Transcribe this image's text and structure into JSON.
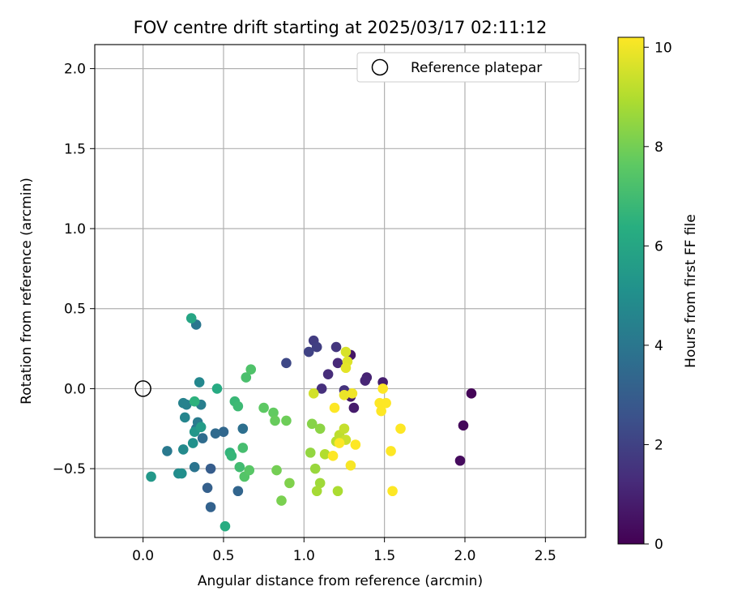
{
  "chart_data": {
    "type": "scatter",
    "title": "FOV centre drift starting at 2025/03/17 02:11:12",
    "xlabel": "Angular distance from reference (arcmin)",
    "ylabel": "Rotation from reference (arcmin)",
    "xlim": [
      -0.3,
      2.75
    ],
    "ylim": [
      -0.93,
      2.15
    ],
    "x_ticks": [
      "0.0",
      "0.5",
      "1.0",
      "1.5",
      "2.0",
      "2.5"
    ],
    "y_ticks": [
      "−0.5",
      "0.0",
      "0.5",
      "1.0",
      "1.5",
      "2.0"
    ],
    "grid": true,
    "legend_position": "top-right",
    "reference": {
      "name": "Reference platepar",
      "x": 0.0,
      "y": 0.0
    },
    "colorbar": {
      "label": "Hours from first FF file",
      "range": [
        0,
        10.2
      ],
      "ticks": [
        "0",
        "2",
        "4",
        "6",
        "8",
        "10"
      ],
      "colormap": "viridis"
    },
    "points": [
      {
        "x": 2.04,
        "y": -0.03,
        "h": 0.1
      },
      {
        "x": 1.99,
        "y": -0.23,
        "h": 0.2
      },
      {
        "x": 1.97,
        "y": -0.45,
        "h": 0.3
      },
      {
        "x": 1.29,
        "y": 0.21,
        "h": 0.6
      },
      {
        "x": 1.29,
        "y": -0.05,
        "h": 0.7
      },
      {
        "x": 1.31,
        "y": -0.12,
        "h": 0.8
      },
      {
        "x": 1.49,
        "y": 0.04,
        "h": 0.9
      },
      {
        "x": 1.39,
        "y": 0.07,
        "h": 1.0
      },
      {
        "x": 1.38,
        "y": 0.05,
        "h": 1.1
      },
      {
        "x": 1.21,
        "y": 0.16,
        "h": 1.2
      },
      {
        "x": 1.15,
        "y": 0.09,
        "h": 1.3
      },
      {
        "x": 1.11,
        "y": 0.0,
        "h": 1.4
      },
      {
        "x": 1.25,
        "y": -0.01,
        "h": 1.5
      },
      {
        "x": 1.2,
        "y": 0.26,
        "h": 1.6
      },
      {
        "x": 1.06,
        "y": 0.3,
        "h": 1.8
      },
      {
        "x": 1.08,
        "y": 0.26,
        "h": 1.9
      },
      {
        "x": 1.03,
        "y": 0.23,
        "h": 2.0
      },
      {
        "x": 0.89,
        "y": 0.16,
        "h": 2.2
      },
      {
        "x": 0.42,
        "y": -0.5,
        "h": 3.0
      },
      {
        "x": 0.4,
        "y": -0.62,
        "h": 3.1
      },
      {
        "x": 0.42,
        "y": -0.74,
        "h": 3.2
      },
      {
        "x": 0.59,
        "y": -0.64,
        "h": 3.3
      },
      {
        "x": 0.5,
        "y": -0.27,
        "h": 3.4
      },
      {
        "x": 0.45,
        "y": -0.28,
        "h": 3.5
      },
      {
        "x": 0.37,
        "y": -0.31,
        "h": 3.6
      },
      {
        "x": 0.62,
        "y": -0.25,
        "h": 3.7
      },
      {
        "x": 0.33,
        "y": -0.25,
        "h": 3.8
      },
      {
        "x": 0.32,
        "y": -0.49,
        "h": 3.9
      },
      {
        "x": 0.33,
        "y": 0.4,
        "h": 4.0
      },
      {
        "x": 0.15,
        "y": -0.39,
        "h": 4.1
      },
      {
        "x": 0.34,
        "y": -0.21,
        "h": 4.2
      },
      {
        "x": 0.36,
        "y": -0.1,
        "h": 4.3
      },
      {
        "x": 0.27,
        "y": -0.1,
        "h": 4.4
      },
      {
        "x": 0.25,
        "y": -0.09,
        "h": 4.5
      },
      {
        "x": 0.26,
        "y": -0.18,
        "h": 4.6
      },
      {
        "x": 0.35,
        "y": 0.04,
        "h": 4.7
      },
      {
        "x": 0.25,
        "y": -0.38,
        "h": 4.8
      },
      {
        "x": 0.22,
        "y": -0.53,
        "h": 4.9
      },
      {
        "x": 0.24,
        "y": -0.53,
        "h": 5.0
      },
      {
        "x": 0.31,
        "y": -0.34,
        "h": 5.1
      },
      {
        "x": 0.32,
        "y": -0.27,
        "h": 5.3
      },
      {
        "x": 0.05,
        "y": -0.55,
        "h": 5.4
      },
      {
        "x": 0.36,
        "y": -0.24,
        "h": 5.6
      },
      {
        "x": 0.3,
        "y": 0.44,
        "h": 6.0
      },
      {
        "x": 0.46,
        "y": 0.0,
        "h": 6.2
      },
      {
        "x": 0.51,
        "y": -0.86,
        "h": 6.3
      },
      {
        "x": 0.32,
        "y": -0.08,
        "h": 6.5
      },
      {
        "x": 0.54,
        "y": -0.4,
        "h": 6.6
      },
      {
        "x": 0.55,
        "y": -0.42,
        "h": 6.7
      },
      {
        "x": 0.57,
        "y": -0.08,
        "h": 6.8
      },
      {
        "x": 0.59,
        "y": -0.11,
        "h": 6.9
      },
      {
        "x": 0.6,
        "y": -0.49,
        "h": 7.0
      },
      {
        "x": 0.62,
        "y": -0.37,
        "h": 7.1
      },
      {
        "x": 0.64,
        "y": 0.07,
        "h": 7.2
      },
      {
        "x": 0.67,
        "y": 0.12,
        "h": 7.3
      },
      {
        "x": 0.63,
        "y": -0.55,
        "h": 7.4
      },
      {
        "x": 0.66,
        "y": -0.51,
        "h": 7.5
      },
      {
        "x": 0.75,
        "y": -0.12,
        "h": 7.6
      },
      {
        "x": 0.81,
        "y": -0.15,
        "h": 7.7
      },
      {
        "x": 0.82,
        "y": -0.2,
        "h": 7.8
      },
      {
        "x": 0.89,
        "y": -0.2,
        "h": 7.9
      },
      {
        "x": 0.83,
        "y": -0.51,
        "h": 8.0
      },
      {
        "x": 0.86,
        "y": -0.7,
        "h": 8.1
      },
      {
        "x": 0.91,
        "y": -0.59,
        "h": 8.2
      },
      {
        "x": 1.05,
        "y": -0.22,
        "h": 8.3
      },
      {
        "x": 1.1,
        "y": -0.25,
        "h": 8.4
      },
      {
        "x": 1.04,
        "y": -0.4,
        "h": 8.5
      },
      {
        "x": 1.07,
        "y": -0.5,
        "h": 8.6
      },
      {
        "x": 1.1,
        "y": -0.59,
        "h": 8.7
      },
      {
        "x": 1.08,
        "y": -0.64,
        "h": 8.8
      },
      {
        "x": 1.21,
        "y": -0.64,
        "h": 8.9
      },
      {
        "x": 1.13,
        "y": -0.41,
        "h": 9.0
      },
      {
        "x": 1.2,
        "y": -0.33,
        "h": 9.1
      },
      {
        "x": 1.22,
        "y": -0.29,
        "h": 9.2
      },
      {
        "x": 1.25,
        "y": -0.25,
        "h": 9.3
      },
      {
        "x": 1.26,
        "y": -0.32,
        "h": 9.4
      },
      {
        "x": 1.06,
        "y": -0.03,
        "h": 9.5
      },
      {
        "x": 1.26,
        "y": 0.23,
        "h": 9.6
      },
      {
        "x": 1.27,
        "y": 0.17,
        "h": 9.7
      },
      {
        "x": 1.26,
        "y": 0.13,
        "h": 9.8
      },
      {
        "x": 1.25,
        "y": -0.04,
        "h": 9.9
      },
      {
        "x": 1.3,
        "y": -0.03,
        "h": 10.0
      },
      {
        "x": 1.29,
        "y": -0.48,
        "h": 10.1
      },
      {
        "x": 1.32,
        "y": -0.35,
        "h": 10.2
      },
      {
        "x": 1.18,
        "y": -0.42,
        "h": 10.2
      },
      {
        "x": 1.19,
        "y": -0.12,
        "h": 10.2
      },
      {
        "x": 1.47,
        "y": -0.09,
        "h": 10.2
      },
      {
        "x": 1.51,
        "y": -0.09,
        "h": 10.2
      },
      {
        "x": 1.48,
        "y": -0.14,
        "h": 10.2
      },
      {
        "x": 1.49,
        "y": 0.0,
        "h": 10.2
      },
      {
        "x": 1.6,
        "y": -0.25,
        "h": 10.2
      },
      {
        "x": 1.54,
        "y": -0.39,
        "h": 10.2
      },
      {
        "x": 1.55,
        "y": -0.64,
        "h": 10.2
      },
      {
        "x": 1.22,
        "y": -0.34,
        "h": 10.2
      }
    ]
  }
}
